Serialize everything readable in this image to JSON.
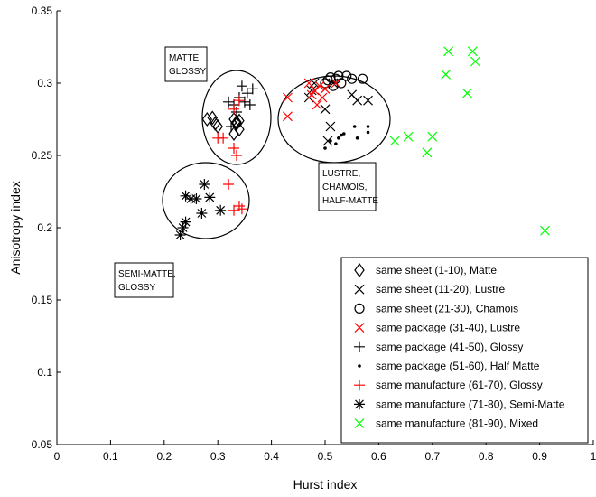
{
  "chart_data": {
    "type": "scatter",
    "xlabel": "Hurst index",
    "ylabel": "Anisotropy index",
    "xlim": [
      0,
      1
    ],
    "ylim": [
      0.05,
      0.35
    ],
    "x_ticks": [
      0,
      0.1,
      0.2,
      0.3,
      0.4,
      0.5,
      0.6,
      0.7,
      0.8,
      0.9,
      1
    ],
    "x_tick_labels": [
      "0",
      "0.1",
      "0.2",
      "0.3",
      "0.4",
      "0.5",
      "0.6",
      "0.7",
      "0.8",
      "0.9",
      "1"
    ],
    "y_ticks": [
      0.05,
      0.1,
      0.15,
      0.2,
      0.25,
      0.3,
      0.35
    ],
    "y_tick_labels": [
      "0.05",
      "0.1",
      "0.15",
      "0.2",
      "0.25",
      "0.3",
      "0.35"
    ],
    "grid": false,
    "legend_position": "bottom-right",
    "series": [
      {
        "name": "same sheet (1-10), Matte",
        "marker": "diamond",
        "color": "#000000",
        "points": [
          [
            0.28,
            0.275
          ],
          [
            0.29,
            0.276
          ],
          [
            0.295,
            0.272
          ],
          [
            0.3,
            0.27
          ],
          [
            0.33,
            0.265
          ],
          [
            0.34,
            0.268
          ],
          [
            0.335,
            0.272
          ],
          [
            0.33,
            0.275
          ],
          [
            0.335,
            0.273
          ],
          [
            0.34,
            0.274
          ]
        ]
      },
      {
        "name": "same sheet (11-20), Lustre",
        "marker": "x",
        "color": "#000000",
        "points": [
          [
            0.47,
            0.29
          ],
          [
            0.475,
            0.295
          ],
          [
            0.48,
            0.3
          ],
          [
            0.5,
            0.282
          ],
          [
            0.51,
            0.27
          ],
          [
            0.505,
            0.26
          ],
          [
            0.55,
            0.292
          ],
          [
            0.56,
            0.288
          ],
          [
            0.58,
            0.288
          ],
          [
            0.515,
            0.3
          ]
        ]
      },
      {
        "name": "same sheet (21-30), Chamois",
        "marker": "circle",
        "color": "#000000",
        "points": [
          [
            0.5,
            0.3
          ],
          [
            0.505,
            0.302
          ],
          [
            0.51,
            0.304
          ],
          [
            0.52,
            0.303
          ],
          [
            0.525,
            0.305
          ],
          [
            0.53,
            0.3
          ],
          [
            0.54,
            0.305
          ],
          [
            0.55,
            0.303
          ],
          [
            0.57,
            0.303
          ],
          [
            0.515,
            0.298
          ]
        ]
      },
      {
        "name": "same package (31-40), Lustre",
        "marker": "x",
        "color": "#ff0000",
        "points": [
          [
            0.43,
            0.29
          ],
          [
            0.43,
            0.277
          ],
          [
            0.47,
            0.3
          ],
          [
            0.475,
            0.292
          ],
          [
            0.48,
            0.295
          ],
          [
            0.49,
            0.298
          ],
          [
            0.495,
            0.29
          ],
          [
            0.5,
            0.296
          ],
          [
            0.485,
            0.285
          ],
          [
            0.52,
            0.3
          ]
        ]
      },
      {
        "name": "same package (41-50), Glossy",
        "marker": "plus",
        "color": "#000000",
        "points": [
          [
            0.32,
            0.287
          ],
          [
            0.33,
            0.285
          ],
          [
            0.34,
            0.29
          ],
          [
            0.345,
            0.298
          ],
          [
            0.35,
            0.287
          ],
          [
            0.355,
            0.293
          ],
          [
            0.365,
            0.296
          ],
          [
            0.335,
            0.28
          ],
          [
            0.325,
            0.27
          ],
          [
            0.36,
            0.285
          ]
        ]
      },
      {
        "name": "same package (51-60), Half Matte",
        "marker": "dot",
        "color": "#000000",
        "points": [
          [
            0.51,
            0.26
          ],
          [
            0.52,
            0.258
          ],
          [
            0.525,
            0.262
          ],
          [
            0.53,
            0.264
          ],
          [
            0.535,
            0.265
          ],
          [
            0.555,
            0.27
          ],
          [
            0.56,
            0.262
          ],
          [
            0.58,
            0.27
          ],
          [
            0.58,
            0.266
          ],
          [
            0.5,
            0.255
          ]
        ]
      },
      {
        "name": "same manufacture (61-70), Glossy",
        "marker": "plus",
        "color": "#ff0000",
        "points": [
          [
            0.3,
            0.262
          ],
          [
            0.31,
            0.262
          ],
          [
            0.33,
            0.282
          ],
          [
            0.335,
            0.25
          ],
          [
            0.32,
            0.23
          ],
          [
            0.33,
            0.212
          ],
          [
            0.34,
            0.215
          ],
          [
            0.345,
            0.213
          ],
          [
            0.33,
            0.255
          ],
          [
            0.34,
            0.288
          ]
        ]
      },
      {
        "name": "same manufacture (71-80), Semi-Matte",
        "marker": "asterisk",
        "color": "#000000",
        "points": [
          [
            0.23,
            0.195
          ],
          [
            0.235,
            0.2
          ],
          [
            0.24,
            0.204
          ],
          [
            0.24,
            0.222
          ],
          [
            0.25,
            0.22
          ],
          [
            0.26,
            0.22
          ],
          [
            0.27,
            0.21
          ],
          [
            0.275,
            0.23
          ],
          [
            0.285,
            0.221
          ],
          [
            0.305,
            0.212
          ]
        ]
      },
      {
        "name": "same manufacture (81-90), Mixed",
        "marker": "x",
        "color": "#00ff00",
        "points": [
          [
            0.63,
            0.26
          ],
          [
            0.655,
            0.263
          ],
          [
            0.69,
            0.252
          ],
          [
            0.7,
            0.263
          ],
          [
            0.725,
            0.306
          ],
          [
            0.73,
            0.322
          ],
          [
            0.765,
            0.293
          ],
          [
            0.775,
            0.322
          ],
          [
            0.78,
            0.315
          ],
          [
            0.91,
            0.198
          ]
        ]
      }
    ],
    "annotations": [
      {
        "lines": [
          "MATTE,",
          "GLOSSY"
        ]
      },
      {
        "lines": [
          "LUSTRE,",
          "CHAMOIS,",
          "HALF-MATTE"
        ]
      },
      {
        "lines": [
          "SEMI-MATTE,",
          "GLOSSY"
        ]
      }
    ]
  }
}
